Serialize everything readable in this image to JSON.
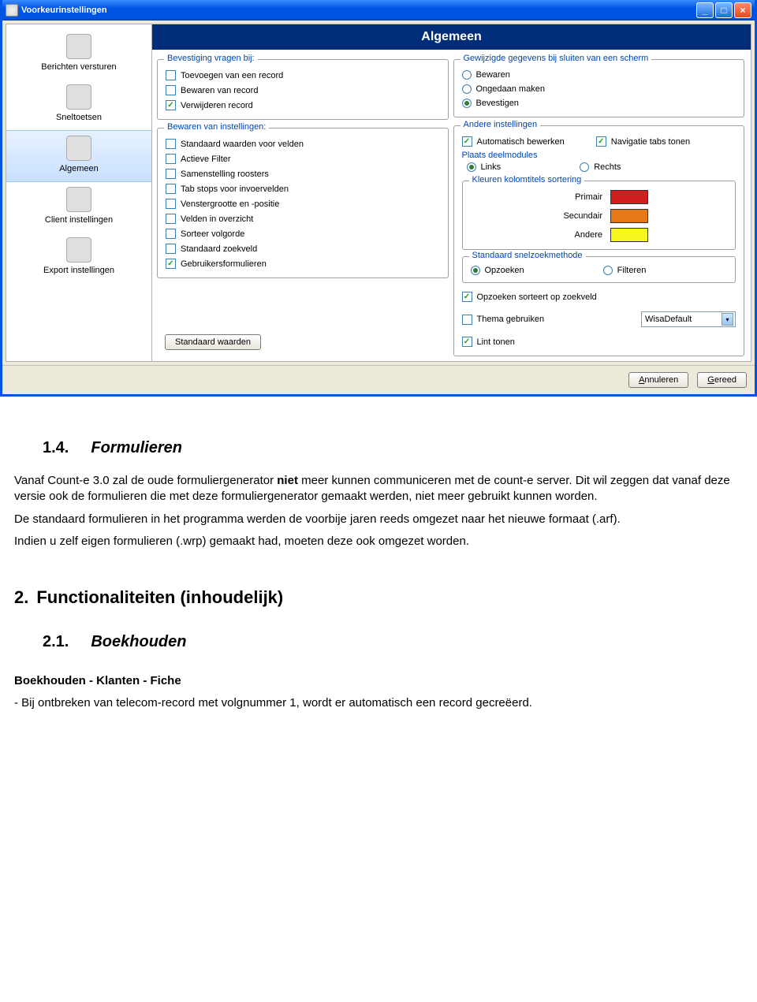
{
  "window": {
    "title": "Voorkeurinstellingen"
  },
  "sidebar": {
    "items": [
      {
        "label": "Berichten versturen"
      },
      {
        "label": "Sneltoetsen"
      },
      {
        "label": "Algemeen"
      },
      {
        "label": "Client instellingen"
      },
      {
        "label": "Export instellingen"
      }
    ],
    "selected_index": 2
  },
  "header": {
    "title": "Algemeen"
  },
  "group_confirm": {
    "title": "Bevestiging vragen bij:",
    "items": [
      {
        "label": "Toevoegen van een record",
        "checked": false
      },
      {
        "label": "Bewaren van record",
        "checked": false
      },
      {
        "label": "Verwijderen record",
        "checked": true
      }
    ]
  },
  "group_save": {
    "title": "Bewaren van instellingen:",
    "items": [
      {
        "label": "Standaard waarden voor velden",
        "checked": false
      },
      {
        "label": "Actieve Filter",
        "checked": false
      },
      {
        "label": "Samenstelling roosters",
        "checked": false
      },
      {
        "label": "Tab stops voor invoervelden",
        "checked": false
      },
      {
        "label": "Venstergrootte en -positie",
        "checked": false
      },
      {
        "label": "Velden in overzicht",
        "checked": false
      },
      {
        "label": "Sorteer volgorde",
        "checked": false
      },
      {
        "label": "Standaard zoekveld",
        "checked": false
      },
      {
        "label": "Gebruikersformulieren",
        "checked": true
      }
    ]
  },
  "group_changed": {
    "title": "Gewijzigde gegevens bij sluiten van een scherm",
    "options": [
      {
        "label": "Bewaren",
        "selected": false
      },
      {
        "label": "Ongedaan maken",
        "selected": false
      },
      {
        "label": "Bevestigen",
        "selected": true
      }
    ]
  },
  "group_other": {
    "title": "Andere instellingen",
    "auto_edit": {
      "label": "Automatisch  bewerken",
      "checked": true
    },
    "nav_tabs": {
      "label": "Navigatie tabs tonen",
      "checked": true
    },
    "placement_title": "Plaats deelmodules",
    "placement_options": [
      {
        "label": "Links",
        "selected": true
      },
      {
        "label": "Rechts",
        "selected": false
      }
    ],
    "colors": {
      "title": "Kleuren kolomtitels sortering",
      "items": [
        {
          "label": "Primair",
          "color": "#d11f1f"
        },
        {
          "label": "Secundair",
          "color": "#e77817"
        },
        {
          "label": "Andere",
          "color": "#f7f71f"
        }
      ]
    },
    "search": {
      "title": "Standaard snelzoekmethode",
      "options": [
        {
          "label": "Opzoeken",
          "selected": true
        },
        {
          "label": "Filteren",
          "selected": false
        }
      ]
    },
    "sort_on_field": {
      "label": "Opzoeken sorteert op zoekveld",
      "checked": true
    },
    "theme_use": {
      "label": "Thema gebruiken",
      "checked": false
    },
    "theme_value": "WisaDefault",
    "ribbon": {
      "label": "Lint tonen",
      "checked": true
    }
  },
  "buttons": {
    "defaults": "Standaard waarden",
    "cancel": "Annuleren",
    "ok": "Gereed"
  },
  "doc": {
    "h_1_4_num": "1.4.",
    "h_1_4": "Formulieren",
    "p1_a": "Vanaf Count-e 3.0 zal de oude formuliergenerator ",
    "p1_b": "niet",
    "p1_c": " meer kunnen communiceren met de count-e server. Dit wil zeggen dat vanaf deze versie ook de formulieren die met deze formuliergenerator gemaakt werden, niet meer gebruikt kunnen worden.",
    "p2": "De standaard formulieren in het programma werden de voorbije jaren reeds omgezet naar het nieuwe formaat (.arf).",
    "p3": "Indien u zelf eigen formulieren (.wrp) gemaakt had, moeten deze ook omgezet worden.",
    "h2_num": "2.",
    "h2": "Functionaliteiten (inhoudelijk)",
    "h_2_1_num": "2.1.",
    "h_2_1": "Boekhouden",
    "sub": "Boekhouden - Klanten - Fiche",
    "p4": "- Bij ontbreken van telecom-record met volgnummer 1, wordt er automatisch een record gecreëerd."
  }
}
